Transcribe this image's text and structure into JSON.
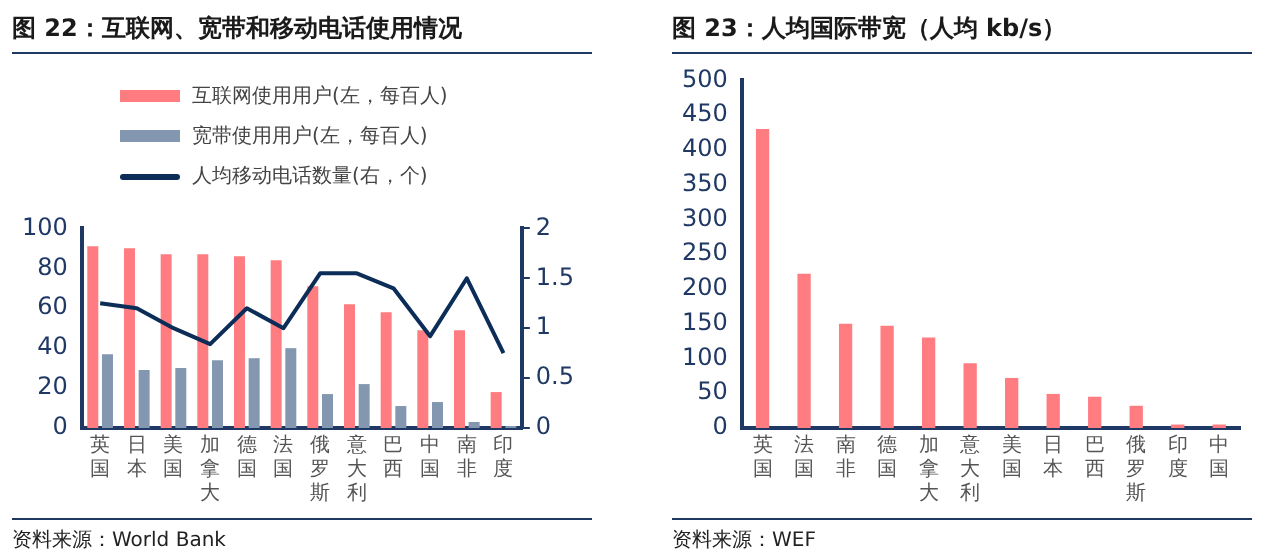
{
  "chart_data": [
    {
      "type": "bar",
      "title": "图 22：互联网、宽带和移动电话使用情况",
      "categories": [
        "英国",
        "日本",
        "美国",
        "加拿大",
        "德国",
        "法国",
        "俄罗斯",
        "意大利",
        "巴西",
        "中国",
        "南非",
        "印度"
      ],
      "series": [
        {
          "name": "互联网使用用户(左，每百人)",
          "color": "#ff7c80",
          "values": [
            91,
            90,
            87,
            87,
            86,
            84,
            71,
            62,
            58,
            49,
            49,
            18
          ]
        },
        {
          "name": "宽带使用用户(左，每百人)",
          "color": "#8497b0",
          "values": [
            37,
            29,
            30,
            34,
            35,
            40,
            17,
            22,
            11,
            13,
            3,
            1
          ]
        },
        {
          "name": "人均移动电话数量(右，个)",
          "type": "line",
          "axis": "y2",
          "color": "#0c2d57",
          "values": [
            1.25,
            1.2,
            1.0,
            0.84,
            1.2,
            1.0,
            1.55,
            1.55,
            1.4,
            0.92,
            1.5,
            0.75
          ]
        }
      ],
      "ylim": [
        0,
        100
      ],
      "yticks": [
        0,
        20,
        40,
        60,
        80,
        100
      ],
      "y2lim": [
        0,
        2
      ],
      "y2ticks": [
        0,
        0.5,
        1,
        1.5,
        2
      ],
      "grid": false,
      "legend": "top",
      "marker": "none",
      "annotations": [
        "资料来源：World Bank"
      ]
    },
    {
      "type": "bar",
      "title": "图 23：人均国际带宽（人均 kb/s）",
      "categories": [
        "英国",
        "法国",
        "南非",
        "德国",
        "加拿大",
        "意大利",
        "美国",
        "日本",
        "巴西",
        "俄罗斯",
        "印度",
        "中国"
      ],
      "values": [
        430,
        222,
        150,
        147,
        130,
        93,
        72,
        49,
        45,
        32,
        5,
        5
      ],
      "color": "#ff7c80",
      "ylim": [
        0,
        500
      ],
      "yticks": [
        0,
        50,
        100,
        150,
        200,
        250,
        300,
        350,
        400,
        450,
        500
      ],
      "grid": false,
      "annotations": [
        "资料来源：WEF"
      ]
    }
  ]
}
